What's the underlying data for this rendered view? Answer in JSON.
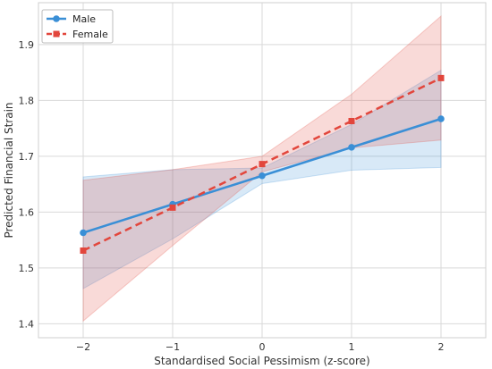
{
  "chart_data": {
    "type": "line",
    "title": "",
    "xlabel": "Standardised Social Pessimism (z-score)",
    "ylabel": "Predicted Financial Strain",
    "x": [
      -2,
      -1,
      0,
      1,
      2
    ],
    "x_tick_labels": [
      "−2",
      "−1",
      "0",
      "1",
      "2"
    ],
    "xlim": [
      -2.5,
      2.5
    ],
    "ylim": [
      1.375,
      1.975
    ],
    "y_ticks": [
      1.4,
      1.5,
      1.6,
      1.7,
      1.8,
      1.9
    ],
    "y_tick_labels": [
      "1.4",
      "1.5",
      "1.6",
      "1.7",
      "1.8",
      "1.9"
    ],
    "grid": true,
    "legend": "top-left",
    "series": [
      {
        "name": "Male",
        "color": "#3a8fd6",
        "line_style": "solid",
        "marker": "circle",
        "values": [
          1.563,
          1.614,
          1.665,
          1.716,
          1.767
        ],
        "ci_lower": [
          1.463,
          1.552,
          1.651,
          1.675,
          1.68
        ],
        "ci_upper": [
          1.663,
          1.676,
          1.679,
          1.757,
          1.854
        ]
      },
      {
        "name": "Female",
        "color": "#e2463c",
        "line_style": "dashed",
        "marker": "square",
        "values": [
          1.531,
          1.608,
          1.686,
          1.763,
          1.84
        ],
        "ci_lower": [
          1.405,
          1.54,
          1.672,
          1.715,
          1.729
        ],
        "ci_upper": [
          1.657,
          1.676,
          1.7,
          1.811,
          1.951
        ]
      }
    ]
  }
}
